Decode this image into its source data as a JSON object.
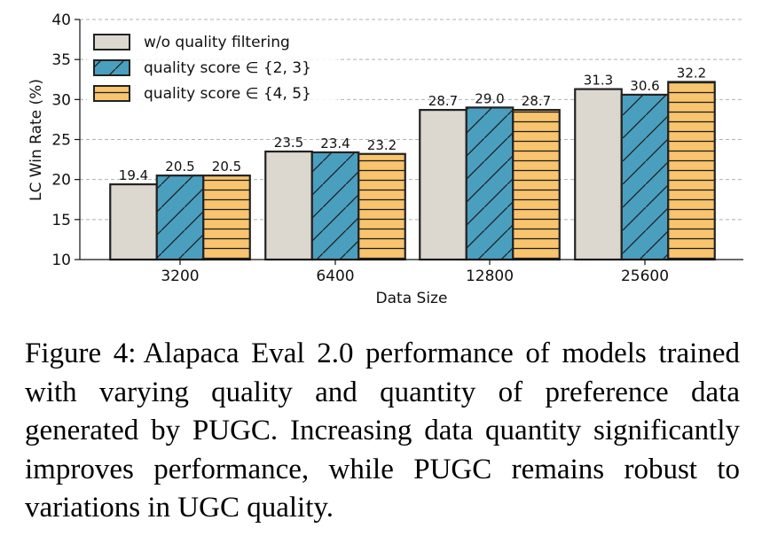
{
  "chart_data": {
    "type": "bar",
    "categories": [
      "3200",
      "6400",
      "12800",
      "25600"
    ],
    "series": [
      {
        "name": "w/o quality filtering",
        "values": [
          19.4,
          23.5,
          28.7,
          31.3
        ],
        "color": "#dcd8d0",
        "pattern": "none"
      },
      {
        "name": "quality score ∈ {2, 3}",
        "values": [
          20.5,
          23.4,
          29.0,
          30.6
        ],
        "color": "#4a9fbf",
        "pattern": "diagonal"
      },
      {
        "name": "quality score ∈ {4, 5}",
        "values": [
          20.5,
          23.2,
          28.7,
          32.2
        ],
        "color": "#f8c46e",
        "pattern": "horizontal"
      }
    ],
    "data_labels": [
      [
        "19.4",
        "20.5",
        "20.5"
      ],
      [
        "23.5",
        "23.4",
        "23.2"
      ],
      [
        "28.7",
        "29.0",
        "28.7"
      ],
      [
        "31.3",
        "30.6",
        "32.2"
      ]
    ],
    "xlabel": "Data Size",
    "ylabel": "LC Win Rate (%)",
    "ylim": [
      10,
      40
    ],
    "yticks": [
      "10",
      "15",
      "20",
      "25",
      "30",
      "35",
      "40"
    ],
    "grid": "horizontal dashed",
    "legend_position": "top-left"
  },
  "caption": {
    "label": "Figure 4:",
    "text": "Alapaca Eval 2.0 performance of models trained with varying quality and quantity of preference data generated by PUGC. Increasing data quantity significantly improves performance, while PUGC remains robust to variations in UGC quality."
  }
}
